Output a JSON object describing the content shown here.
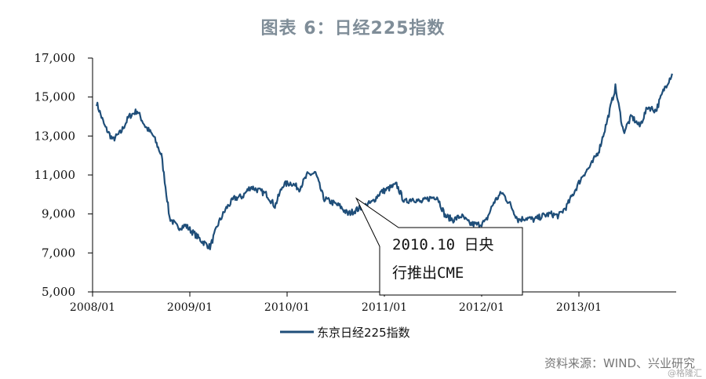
{
  "chart_data": {
    "type": "line",
    "title": "图表 6：日经225指数",
    "x_ticks": [
      "2008/01",
      "2009/01",
      "2010/01",
      "2011/01",
      "2012/01",
      "2013/01"
    ],
    "y_ticks": [
      "5,000",
      "7,000",
      "9,000",
      "11,000",
      "13,000",
      "15,000",
      "17,000"
    ],
    "ylim": [
      5000,
      17000
    ],
    "xlim": [
      "2008/01",
      "2013/12"
    ],
    "grid": false,
    "legend_position": "bottom",
    "series": [
      {
        "name": "东京日经225指数",
        "color": "#1f4e79",
        "x": [
          "2008/01",
          "2008/02",
          "2008/03",
          "2008/04",
          "2008/05",
          "2008/06",
          "2008/07",
          "2008/08",
          "2008/09",
          "2008/10",
          "2008/11",
          "2008/12",
          "2009/01",
          "2009/02",
          "2009/03",
          "2009/04",
          "2009/05",
          "2009/06",
          "2009/07",
          "2009/08",
          "2009/09",
          "2009/10",
          "2009/11",
          "2009/12",
          "2010/01",
          "2010/02",
          "2010/03",
          "2010/04",
          "2010/05",
          "2010/06",
          "2010/07",
          "2010/08",
          "2010/09",
          "2010/10",
          "2010/11",
          "2010/12",
          "2011/01",
          "2011/02",
          "2011/03",
          "2011/04",
          "2011/05",
          "2011/06",
          "2011/07",
          "2011/08",
          "2011/09",
          "2011/10",
          "2011/11",
          "2011/12",
          "2012/01",
          "2012/02",
          "2012/03",
          "2012/04",
          "2012/05",
          "2012/06",
          "2012/07",
          "2012/08",
          "2012/09",
          "2012/10",
          "2012/11",
          "2012/12",
          "2013/01",
          "2013/02",
          "2013/03",
          "2013/04",
          "2013/05",
          "2013/06",
          "2013/07",
          "2013/08",
          "2013/09",
          "2013/10",
          "2013/11",
          "2013/12"
        ],
        "values": [
          14700,
          13500,
          12800,
          13200,
          14000,
          14300,
          13500,
          13000,
          12000,
          8800,
          8300,
          8400,
          8000,
          7600,
          7300,
          8500,
          9300,
          9800,
          9900,
          10400,
          10200,
          10000,
          9400,
          10500,
          10600,
          10300,
          11000,
          11100,
          9800,
          9600,
          9400,
          9000,
          9200,
          9400,
          9600,
          10100,
          10300,
          10500,
          9600,
          9800,
          9600,
          9800,
          9900,
          8900,
          8700,
          8900,
          8500,
          8450,
          8600,
          9600,
          10100,
          9500,
          8700,
          8800,
          8700,
          8900,
          9000,
          8900,
          9400,
          10200,
          11000,
          11500,
          12300,
          13800,
          15500,
          13200,
          14000,
          13500,
          14500,
          14300,
          15400,
          16200
        ]
      }
    ],
    "annotation": {
      "lines": [
        "2010.10 日央",
        "行推出CME"
      ],
      "points_to": "2010/10"
    }
  },
  "source": "资料来源：WIND、兴业研究",
  "watermark": "@格隆汇"
}
